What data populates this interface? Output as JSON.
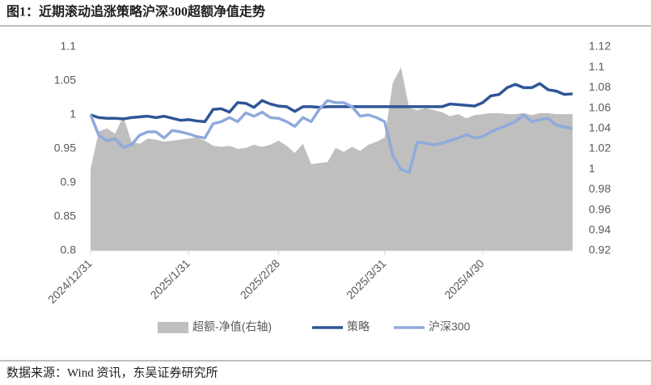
{
  "chart_data": {
    "type": "line",
    "title": "图1：近期滚动追涨策略沪深300超额净值走势",
    "source": "数据来源：Wind 资讯，东吴证券研究所",
    "categories": [
      "2024/12/31",
      null,
      null,
      null,
      null,
      null,
      null,
      null,
      null,
      null,
      null,
      null,
      "2025/1/31",
      null,
      null,
      null,
      null,
      null,
      null,
      null,
      null,
      null,
      null,
      "2025/2/28",
      null,
      null,
      null,
      null,
      null,
      null,
      null,
      null,
      null,
      null,
      null,
      null,
      "2025/3/31",
      null,
      null,
      null,
      null,
      null,
      null,
      null,
      null,
      null,
      null,
      null,
      "2025/4/30",
      null,
      null,
      null,
      null,
      null,
      null,
      null,
      null,
      null,
      null,
      null
    ],
    "ylim": [
      0.8,
      1.1
    ],
    "yticks": [
      0.8,
      0.85,
      0.9,
      0.95,
      1,
      1.05,
      1.1
    ],
    "y2lim": [
      0.92,
      1.12
    ],
    "y2ticks": [
      0.92,
      0.94,
      0.96,
      0.98,
      1,
      1.02,
      1.04,
      1.06,
      1.08,
      1.1,
      1.12
    ],
    "legend": "bottom",
    "series": [
      {
        "name": "超额-净值(右轴)",
        "type": "area",
        "axis": "y2",
        "color": "#bfbfbf",
        "values": [
          1.0,
          1.037,
          1.04,
          1.035,
          1.052,
          1.027,
          1.025,
          1.03,
          1.029,
          1.027,
          1.028,
          1.029,
          1.03,
          1.031,
          1.028,
          1.023,
          1.022,
          1.023,
          1.02,
          1.021,
          1.024,
          1.022,
          1.024,
          1.028,
          1.023,
          1.016,
          1.025,
          1.005,
          1.006,
          1.007,
          1.021,
          1.017,
          1.022,
          1.018,
          1.024,
          1.027,
          1.031,
          1.085,
          1.1,
          1.06,
          1.058,
          1.06,
          1.058,
          1.056,
          1.052,
          1.054,
          1.05,
          1.053,
          1.054,
          1.055,
          1.055,
          1.054,
          1.054,
          1.055,
          1.053,
          1.055,
          1.055,
          1.054,
          1.054,
          1.054
        ]
      },
      {
        "name": "策略",
        "type": "line",
        "color": "#2f5597",
        "values": [
          1.0,
          0.996,
          0.995,
          0.995,
          0.994,
          0.996,
          0.997,
          0.998,
          0.996,
          0.998,
          0.995,
          0.992,
          0.993,
          0.991,
          0.99,
          1.008,
          1.009,
          1.004,
          1.018,
          1.017,
          1.011,
          1.021,
          1.016,
          1.013,
          1.012,
          1.005,
          1.012,
          1.012,
          1.011,
          1.012,
          1.012,
          1.012,
          1.012,
          1.012,
          1.012,
          1.012,
          1.012,
          1.012,
          1.012,
          1.012,
          1.012,
          1.012,
          1.012,
          1.012,
          1.016,
          1.015,
          1.014,
          1.013,
          1.018,
          1.028,
          1.03,
          1.04,
          1.045,
          1.04,
          1.04,
          1.046,
          1.037,
          1.035,
          1.03,
          1.031
        ]
      },
      {
        "name": "沪深300",
        "type": "line",
        "color": "#8faadc",
        "values": [
          1.0,
          0.97,
          0.962,
          0.965,
          0.952,
          0.956,
          0.97,
          0.975,
          0.975,
          0.966,
          0.977,
          0.975,
          0.972,
          0.968,
          0.966,
          0.987,
          0.99,
          0.996,
          0.99,
          1.003,
          0.998,
          1.004,
          0.996,
          0.995,
          0.99,
          0.983,
          0.996,
          0.99,
          1.008,
          1.021,
          1.018,
          1.018,
          1.012,
          0.998,
          1.0,
          0.996,
          0.99,
          0.94,
          0.92,
          0.915,
          0.96,
          0.958,
          0.956,
          0.958,
          0.962,
          0.966,
          0.971,
          0.966,
          0.968,
          0.975,
          0.98,
          0.985,
          0.99,
          1.0,
          0.99,
          0.993,
          0.995,
          0.985,
          0.982,
          0.98
        ]
      }
    ]
  }
}
